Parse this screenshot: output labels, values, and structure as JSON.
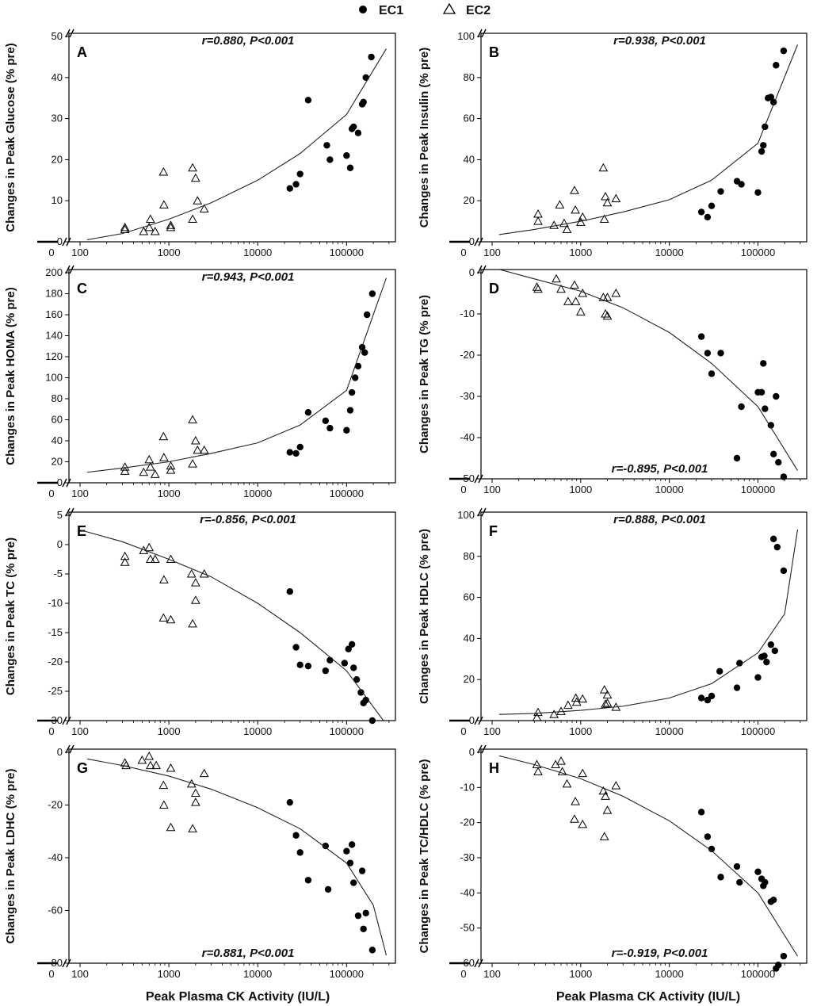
{
  "legend": {
    "ec1_label": "EC1",
    "ec2_label": "EC2"
  },
  "x_axis_label": "Peak Plasma CK Activity (IU/L)",
  "chart_data": [
    {
      "type": "scatter",
      "panel": "A",
      "ylabel": "Changes in Peak Glucose (% pre)",
      "annotation": "r=0.880, P<0.001",
      "annotation_pos": "top",
      "ylim": [
        0,
        50
      ],
      "yticks": [
        0,
        10,
        20,
        30,
        40,
        50
      ],
      "xticks": [
        "0",
        "100",
        "1000",
        "10000",
        "100000"
      ],
      "series": [
        {
          "name": "EC1",
          "marker": "filled-circle",
          "x": [
            23000,
            27000,
            30000,
            37000,
            60000,
            65000,
            100000,
            110000,
            115000,
            120000,
            135000,
            150000,
            155000,
            165000,
            190000
          ],
          "y": [
            13,
            14,
            16.5,
            34.5,
            23.5,
            20,
            21,
            18,
            27.5,
            28,
            26.5,
            33.5,
            34,
            40,
            45
          ]
        },
        {
          "name": "EC2",
          "marker": "open-triangle",
          "x": [
            320,
            320,
            520,
            600,
            620,
            700,
            870,
            880,
            1050,
            1050,
            1850,
            1850,
            2000,
            2100,
            2500
          ],
          "y": [
            3,
            3.5,
            2.5,
            3.5,
            5.5,
            2.5,
            17,
            9,
            3.5,
            4,
            18,
            5.5,
            15.5,
            10,
            8
          ]
        },
        {
          "name": "fit",
          "type": "line",
          "x": [
            120,
            300,
            1000,
            3000,
            10000,
            30000,
            100000,
            280000
          ],
          "y": [
            0.5,
            2,
            5.5,
            9.5,
            15,
            21.5,
            31,
            47
          ]
        }
      ]
    },
    {
      "type": "scatter",
      "panel": "B",
      "ylabel": "Changes in Peak Insulin (% pre)",
      "annotation": "r=0.938, P<0.001",
      "annotation_pos": "top",
      "ylim": [
        0,
        100
      ],
      "yticks": [
        0,
        20,
        40,
        60,
        80,
        100
      ],
      "xticks": [
        "0",
        "100",
        "1000",
        "10000",
        "100000"
      ],
      "series": [
        {
          "name": "EC1",
          "marker": "filled-circle",
          "x": [
            23000,
            27000,
            30000,
            38000,
            58000,
            65000,
            100000,
            110000,
            115000,
            120000,
            130000,
            140000,
            150000,
            160000,
            195000
          ],
          "y": [
            14.5,
            12,
            17.5,
            24.5,
            29.5,
            28,
            24,
            44,
            47,
            56,
            70,
            70.5,
            68,
            86,
            93
          ]
        },
        {
          "name": "EC2",
          "marker": "open-triangle",
          "x": [
            330,
            330,
            500,
            580,
            650,
            700,
            850,
            870,
            1000,
            1050,
            1800,
            1850,
            1900,
            2000,
            2500
          ],
          "y": [
            10,
            13.5,
            8,
            18,
            9,
            6,
            25,
            15.5,
            9.5,
            12,
            36,
            11,
            22,
            19,
            21
          ]
        },
        {
          "name": "fit",
          "type": "line",
          "x": [
            120,
            300,
            1000,
            3000,
            10000,
            30000,
            100000,
            280000
          ],
          "y": [
            3.5,
            6,
            10,
            14.5,
            20.5,
            30,
            48,
            96
          ]
        }
      ]
    },
    {
      "type": "scatter",
      "panel": "C",
      "ylabel": "Changes in Peak HOMA (% pre)",
      "annotation": "r=0.943, P<0.001",
      "annotation_pos": "top",
      "ylim": [
        0,
        200
      ],
      "yticks": [
        0,
        20,
        40,
        60,
        80,
        100,
        120,
        140,
        160,
        180,
        200
      ],
      "xticks": [
        "0",
        "100",
        "1000",
        "10000",
        "100000"
      ],
      "series": [
        {
          "name": "EC1",
          "marker": "filled-circle",
          "x": [
            23000,
            27000,
            30000,
            37000,
            58000,
            65000,
            100000,
            110000,
            115000,
            125000,
            135000,
            150000,
            160000,
            170000,
            195000
          ],
          "y": [
            29,
            28,
            34,
            67,
            59,
            52,
            50,
            69,
            86,
            100,
            111,
            129,
            124,
            160,
            180
          ]
        },
        {
          "name": "EC2",
          "marker": "open-triangle",
          "x": [
            320,
            320,
            520,
            600,
            620,
            700,
            870,
            880,
            1050,
            1050,
            1850,
            1850,
            2000,
            2100,
            2500
          ],
          "y": [
            15,
            11,
            10,
            22,
            15,
            8,
            44,
            24,
            16,
            12,
            60,
            18,
            40,
            31,
            31
          ]
        },
        {
          "name": "fit",
          "type": "line",
          "x": [
            120,
            300,
            1000,
            3000,
            10000,
            30000,
            100000,
            280000
          ],
          "y": [
            10,
            14,
            20,
            28,
            38,
            55,
            88,
            195
          ]
        }
      ]
    },
    {
      "type": "scatter",
      "panel": "D",
      "ylabel": "Changes in Peak TG (% pre)",
      "annotation": "r=-0.895, P<0.001",
      "annotation_pos": "bottom",
      "ylim": [
        -50,
        0
      ],
      "yticks": [
        -50,
        -40,
        -30,
        -20,
        -10,
        0
      ],
      "xticks": [
        "0",
        "100",
        "1000",
        "10000",
        "100000"
      ],
      "series": [
        {
          "name": "EC1",
          "marker": "filled-circle",
          "x": [
            23000,
            27000,
            30000,
            38000,
            58000,
            65000,
            100000,
            110000,
            115000,
            120000,
            140000,
            150000,
            160000,
            170000,
            195000
          ],
          "y": [
            -15.5,
            -19.5,
            -24.5,
            -19.5,
            -45,
            -32.5,
            -29,
            -29,
            -22,
            -33,
            -37,
            -44,
            -30,
            -46,
            -49.5
          ]
        },
        {
          "name": "EC2",
          "marker": "open-triangle",
          "x": [
            320,
            330,
            530,
            600,
            720,
            850,
            880,
            1000,
            1050,
            1800,
            1900,
            2000,
            2000,
            2500
          ],
          "y": [
            -3.5,
            -4,
            -1.5,
            -4,
            -7,
            -3,
            -7,
            -9.5,
            -5,
            -6,
            -10,
            -10.5,
            -6,
            -5
          ]
        },
        {
          "name": "fit",
          "type": "line",
          "x": [
            120,
            300,
            1000,
            3000,
            10000,
            30000,
            100000,
            280000
          ],
          "y": [
            0.8,
            -1.5,
            -4.5,
            -8.5,
            -14.5,
            -22,
            -32.5,
            -48
          ]
        }
      ]
    },
    {
      "type": "scatter",
      "panel": "E",
      "ylabel": "Changes in Peak TC (% pre)",
      "annotation": "r=-0.856, P<0.001",
      "annotation_pos": "top",
      "ylim": [
        -30,
        5
      ],
      "yticks": [
        -30,
        -25,
        -20,
        -15,
        -10,
        -5,
        0,
        5
      ],
      "xticks": [
        "0",
        "100",
        "1000",
        "10000",
        "100000"
      ],
      "series": [
        {
          "name": "EC1",
          "marker": "filled-circle",
          "x": [
            23000,
            27000,
            30000,
            37000,
            58000,
            65000,
            95000,
            105000,
            115000,
            120000,
            130000,
            145000,
            155000,
            165000,
            195000
          ],
          "y": [
            -8,
            -17.5,
            -20.5,
            -20.7,
            -21.5,
            -19.7,
            -20.2,
            -17.8,
            -17,
            -21,
            -23,
            -25.2,
            -27,
            -26.5,
            -30
          ]
        },
        {
          "name": "EC2",
          "marker": "open-triangle",
          "x": [
            320,
            320,
            520,
            600,
            620,
            700,
            870,
            880,
            1050,
            1050,
            1800,
            1850,
            2000,
            2000,
            2500
          ],
          "y": [
            -2,
            -3,
            -1,
            -0.5,
            -2.5,
            -2.5,
            -12.5,
            -6,
            -12.8,
            -2.5,
            -5,
            -13.5,
            -9.5,
            -6.5,
            -5
          ]
        },
        {
          "name": "fit",
          "type": "line",
          "x": [
            100,
            300,
            1000,
            3000,
            10000,
            30000,
            100000,
            260000
          ],
          "y": [
            2.5,
            0.5,
            -2.5,
            -5.5,
            -10,
            -15,
            -21.5,
            -30
          ]
        }
      ]
    },
    {
      "type": "scatter",
      "panel": "F",
      "ylabel": "Changes in Peak HDLC (% pre)",
      "annotation": "r=0.888, P<0.001",
      "annotation_pos": "top",
      "ylim": [
        0,
        100
      ],
      "yticks": [
        0,
        20,
        40,
        60,
        80,
        100
      ],
      "xticks": [
        "0",
        "100",
        "1000",
        "10000",
        "100000"
      ],
      "series": [
        {
          "name": "EC1",
          "marker": "filled-circle",
          "x": [
            23000,
            27000,
            30000,
            37000,
            58000,
            62000,
            100000,
            110000,
            118000,
            125000,
            140000,
            150000,
            155000,
            165000,
            195000
          ],
          "y": [
            11,
            10,
            12,
            24,
            16,
            28,
            21,
            31,
            31.5,
            28.5,
            37,
            88.5,
            34,
            84.5,
            73
          ]
        },
        {
          "name": "EC2",
          "marker": "open-triangle",
          "x": [
            320,
            330,
            500,
            600,
            720,
            880,
            900,
            1050,
            1850,
            1900,
            2000,
            2000,
            2500
          ],
          "y": [
            1.5,
            4,
            3,
            4.5,
            7.5,
            11,
            9,
            10.5,
            15,
            8,
            12.5,
            8.5,
            6.5
          ]
        },
        {
          "name": "fit",
          "type": "line",
          "x": [
            120,
            300,
            1000,
            3000,
            10000,
            30000,
            100000,
            200000,
            280000
          ],
          "y": [
            3,
            3.5,
            5,
            7,
            11,
            18,
            33,
            52,
            93
          ]
        }
      ]
    },
    {
      "type": "scatter",
      "panel": "G",
      "ylabel": "Changes in Peak LDHC (% pre)",
      "annotation": "r=0.881, P<0.001",
      "annotation_pos": "bottom",
      "ylim": [
        -80,
        0
      ],
      "yticks": [
        -80,
        -60,
        -40,
        -20,
        0
      ],
      "xticks": [
        "0",
        "100",
        "1000",
        "10000",
        "100000"
      ],
      "series": [
        {
          "name": "EC1",
          "marker": "filled-circle",
          "x": [
            23000,
            27000,
            30000,
            37000,
            58000,
            62000,
            100000,
            110000,
            115000,
            120000,
            135000,
            150000,
            155000,
            165000,
            195000
          ],
          "y": [
            -19,
            -31.5,
            -38,
            -48.5,
            -35.5,
            -52,
            -37.5,
            -42,
            -35,
            -49.5,
            -62,
            -45,
            -67,
            -61,
            -75
          ]
        },
        {
          "name": "EC2",
          "marker": "open-triangle",
          "x": [
            320,
            330,
            500,
            600,
            620,
            720,
            870,
            880,
            1050,
            1050,
            1800,
            1850,
            2000,
            2000,
            2500
          ],
          "y": [
            -4,
            -5,
            -3,
            -1.5,
            -5,
            -5,
            -12.5,
            -20,
            -6,
            -28.5,
            -12,
            -29,
            -15.5,
            -19,
            -8
          ]
        },
        {
          "name": "fit",
          "type": "line",
          "x": [
            120,
            300,
            1000,
            3000,
            10000,
            30000,
            100000,
            200000,
            280000
          ],
          "y": [
            -2.5,
            -5,
            -9,
            -14,
            -21,
            -29,
            -42,
            -58,
            -77
          ]
        }
      ]
    },
    {
      "type": "scatter",
      "panel": "H",
      "ylabel": "Changes in Peak TC/HDLC (% pre)",
      "annotation": "r=-0.919, P<0.001",
      "annotation_pos": "bottom",
      "ylim": [
        -60,
        0
      ],
      "yticks": [
        -60,
        -50,
        -40,
        -30,
        -20,
        -10,
        0
      ],
      "xticks": [
        "0",
        "100",
        "1000",
        "10000",
        "100000"
      ],
      "series": [
        {
          "name": "EC1",
          "marker": "filled-circle",
          "x": [
            23000,
            27000,
            30000,
            38000,
            58000,
            62000,
            100000,
            110000,
            115000,
            120000,
            140000,
            150000,
            160000,
            170000,
            195000
          ],
          "y": [
            -17,
            -24,
            -27.5,
            -35.5,
            -32.5,
            -37,
            -34,
            -36,
            -38,
            -37,
            -42.5,
            -42,
            -61.5,
            -60.5,
            -58
          ]
        },
        {
          "name": "EC2",
          "marker": "open-triangle",
          "x": [
            320,
            330,
            520,
            600,
            620,
            700,
            850,
            870,
            1050,
            1050,
            1800,
            1850,
            1900,
            2000,
            2500
          ],
          "y": [
            -3.5,
            -5.5,
            -3.5,
            -2.5,
            -5.5,
            -9,
            -19,
            -14,
            -20.5,
            -6,
            -11,
            -24,
            -12.5,
            -16.5,
            -9.5
          ]
        },
        {
          "name": "fit",
          "type": "line",
          "x": [
            120,
            300,
            1000,
            3000,
            10000,
            30000,
            100000,
            280000
          ],
          "y": [
            -1,
            -3.5,
            -7.5,
            -12.5,
            -19.5,
            -28,
            -40,
            -58
          ]
        }
      ]
    }
  ]
}
